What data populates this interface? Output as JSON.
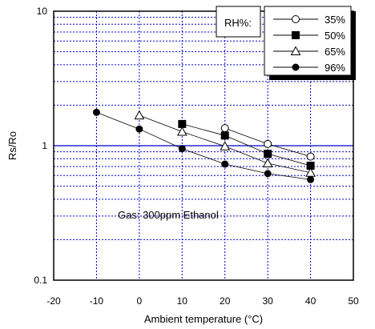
{
  "chart_data": {
    "type": "scatter",
    "xlabel": "Ambient temperature (°C)",
    "ylabel": "Rs/Ro",
    "xlim": [
      -20,
      50
    ],
    "ylim": [
      0.1,
      10
    ],
    "yscale": "log",
    "grid": true,
    "x_ticks": [
      -20,
      -10,
      0,
      10,
      20,
      30,
      40,
      50
    ],
    "x_tick_labels": [
      "-20",
      "-10",
      "0",
      "10",
      "20",
      "30",
      "40",
      "50"
    ],
    "y_ticks": [
      0.1,
      1,
      10
    ],
    "y_tick_labels": [
      "0.1",
      "1",
      "10"
    ],
    "legend": {
      "title": "RH%:",
      "position": "top-right"
    },
    "annotation": "Gas: 300ppm Ethanol",
    "series": [
      {
        "name": "35%",
        "marker": "open-circle",
        "x": [
          20,
          30,
          40
        ],
        "y": [
          1.35,
          1.03,
          0.83
        ]
      },
      {
        "name": "50%",
        "marker": "filled-square",
        "x": [
          10,
          20,
          30,
          40
        ],
        "y": [
          1.45,
          1.19,
          0.87,
          0.71
        ]
      },
      {
        "name": "65%",
        "marker": "open-triangle",
        "x": [
          0,
          10,
          20,
          30,
          40
        ],
        "y": [
          1.68,
          1.27,
          0.99,
          0.74,
          0.63
        ]
      },
      {
        "name": "96%",
        "marker": "filled-circle",
        "x": [
          -10,
          0,
          10,
          20,
          30,
          40
        ],
        "y": [
          1.77,
          1.33,
          0.95,
          0.73,
          0.62,
          0.56
        ]
      }
    ]
  }
}
